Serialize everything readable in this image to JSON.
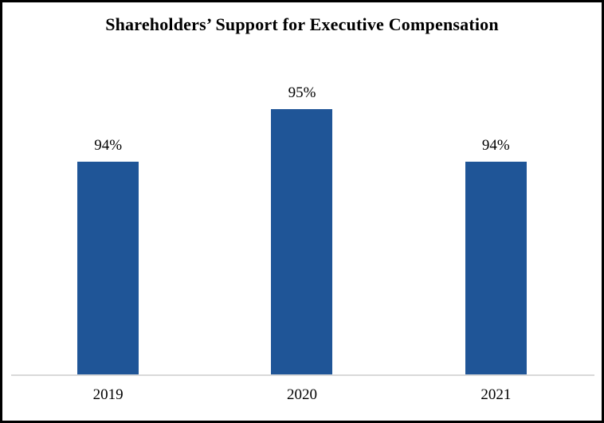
{
  "chart_data": {
    "type": "bar",
    "title": "Shareholders’ Support for Executive Compensation",
    "categories": [
      "2019",
      "2020",
      "2021"
    ],
    "values": [
      94,
      95,
      94
    ],
    "value_labels": [
      "94%",
      "95%",
      "94%"
    ],
    "ylim": [
      90,
      96
    ],
    "xlabel": "",
    "ylabel": "",
    "grid": false,
    "legend": false,
    "colors": {
      "bar": "#1F5597",
      "axis_line": "#D9D9D9",
      "text": "#000000",
      "background": "#FFFFFF",
      "frame_border": "#000000"
    }
  }
}
